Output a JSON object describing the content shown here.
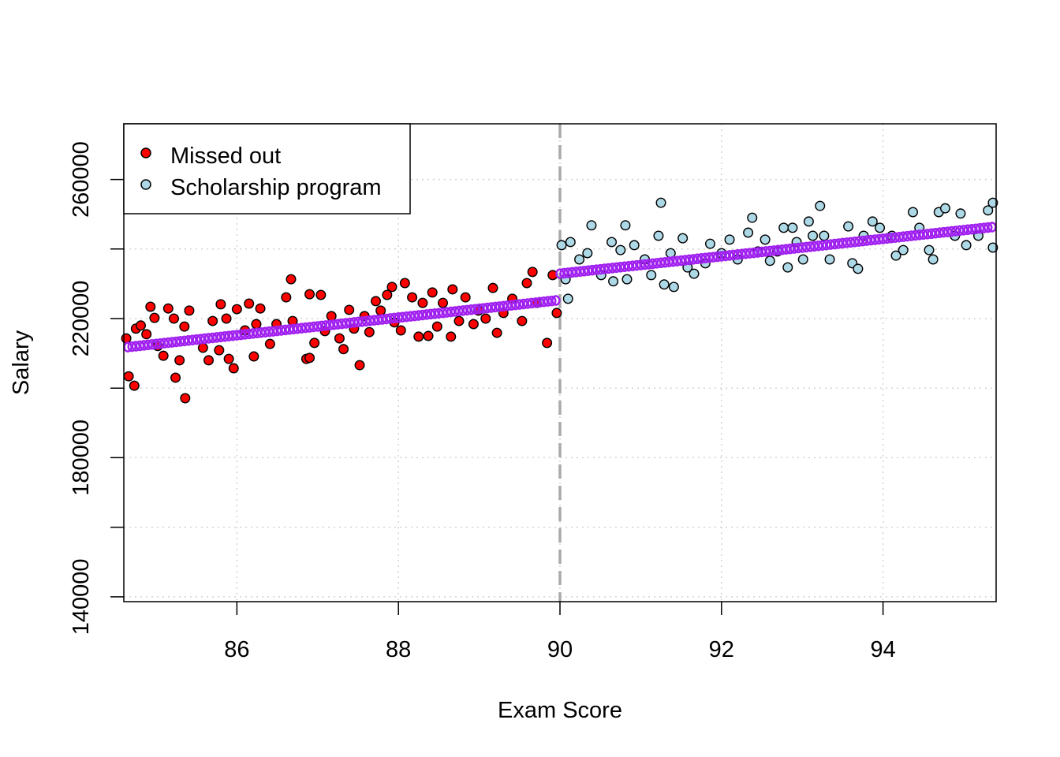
{
  "chart_data": {
    "type": "scatter",
    "title": "",
    "xlabel": "Exam Score",
    "ylabel": "Salary",
    "xlim": [
      84.6,
      95.4
    ],
    "ylim": [
      138600,
      276000
    ],
    "xticks": [
      86,
      88,
      90,
      92,
      94
    ],
    "xtick_labels": [
      "86",
      "88",
      "90",
      "92",
      "94"
    ],
    "yticks": [
      140000,
      160000,
      180000,
      200000,
      220000,
      240000,
      260000
    ],
    "ytick_labels": [
      "140000",
      "",
      "180000",
      "",
      "220000",
      "",
      "260000"
    ],
    "grid": true,
    "cutoff": 90,
    "legend": {
      "placement": "top-left",
      "entries": [
        {
          "label": "Missed out",
          "color": "#ff0000"
        },
        {
          "label": "Scholarship program",
          "color": "#add8e6"
        }
      ]
    },
    "colors": {
      "missed": "#ff0000",
      "scholarship": "#add8e6",
      "fit": "#a020f0",
      "cutoff": "#aaaaaa",
      "grid": "#d3d3d3"
    },
    "series": [
      {
        "name": "Missed out",
        "points": [
          [
            84.63,
            214300
          ],
          [
            84.66,
            203400
          ],
          [
            84.73,
            200700
          ],
          [
            84.75,
            217100
          ],
          [
            84.81,
            218000
          ],
          [
            84.88,
            215500
          ],
          [
            84.93,
            223400
          ],
          [
            84.98,
            220200
          ],
          [
            85.02,
            212100
          ],
          [
            85.09,
            209300
          ],
          [
            85.15,
            222900
          ],
          [
            85.22,
            220000
          ],
          [
            85.24,
            203000
          ],
          [
            85.29,
            208000
          ],
          [
            85.35,
            217700
          ],
          [
            85.36,
            197100
          ],
          [
            85.41,
            222300
          ],
          [
            85.58,
            211600
          ],
          [
            85.65,
            208000
          ],
          [
            85.7,
            219300
          ],
          [
            85.78,
            210900
          ],
          [
            85.8,
            224100
          ],
          [
            85.87,
            220000
          ],
          [
            85.9,
            208400
          ],
          [
            85.96,
            205700
          ],
          [
            86.0,
            222700
          ],
          [
            86.1,
            216600
          ],
          [
            86.15,
            224300
          ],
          [
            86.21,
            209100
          ],
          [
            86.24,
            218400
          ],
          [
            86.29,
            222900
          ],
          [
            86.41,
            212700
          ],
          [
            86.49,
            218400
          ],
          [
            86.61,
            226100
          ],
          [
            86.67,
            231300
          ],
          [
            86.69,
            219300
          ],
          [
            86.86,
            208400
          ],
          [
            86.9,
            227000
          ],
          [
            86.9,
            208700
          ],
          [
            86.96,
            213000
          ],
          [
            87.04,
            226800
          ],
          [
            87.09,
            216400
          ],
          [
            87.17,
            220700
          ],
          [
            87.27,
            214300
          ],
          [
            87.32,
            211200
          ],
          [
            87.39,
            222500
          ],
          [
            87.45,
            217100
          ],
          [
            87.52,
            206600
          ],
          [
            87.58,
            220700
          ],
          [
            87.64,
            216100
          ],
          [
            87.72,
            225000
          ],
          [
            87.78,
            222300
          ],
          [
            87.86,
            226800
          ],
          [
            87.92,
            229100
          ],
          [
            87.95,
            218900
          ],
          [
            88.03,
            216600
          ],
          [
            88.08,
            230200
          ],
          [
            88.17,
            226100
          ],
          [
            88.25,
            214800
          ],
          [
            88.3,
            224500
          ],
          [
            88.37,
            215000
          ],
          [
            88.42,
            227500
          ],
          [
            88.48,
            217700
          ],
          [
            88.55,
            224500
          ],
          [
            88.65,
            214800
          ],
          [
            88.67,
            228400
          ],
          [
            88.75,
            219300
          ],
          [
            88.83,
            226100
          ],
          [
            88.93,
            218400
          ],
          [
            88.99,
            222300
          ],
          [
            89.08,
            220000
          ],
          [
            89.17,
            228800
          ],
          [
            89.22,
            215900
          ],
          [
            89.3,
            221600
          ],
          [
            89.41,
            225700
          ],
          [
            89.53,
            219300
          ],
          [
            89.59,
            230200
          ],
          [
            89.66,
            233400
          ],
          [
            89.71,
            224500
          ],
          [
            89.84,
            213000
          ],
          [
            89.91,
            232500
          ],
          [
            89.96,
            221600
          ]
        ]
      },
      {
        "name": "Scholarship program",
        "points": [
          [
            90.02,
            241100
          ],
          [
            90.07,
            231300
          ],
          [
            90.1,
            225700
          ],
          [
            90.13,
            242000
          ],
          [
            90.24,
            237000
          ],
          [
            90.34,
            238800
          ],
          [
            90.39,
            246800
          ],
          [
            90.51,
            232500
          ],
          [
            90.64,
            242000
          ],
          [
            90.66,
            230700
          ],
          [
            90.75,
            239700
          ],
          [
            90.81,
            246800
          ],
          [
            90.83,
            231300
          ],
          [
            90.92,
            241100
          ],
          [
            91.05,
            237000
          ],
          [
            91.13,
            232500
          ],
          [
            91.22,
            243800
          ],
          [
            91.25,
            253300
          ],
          [
            91.29,
            229800
          ],
          [
            91.37,
            238800
          ],
          [
            91.41,
            229100
          ],
          [
            91.52,
            243100
          ],
          [
            91.58,
            234700
          ],
          [
            91.66,
            232900
          ],
          [
            91.8,
            235900
          ],
          [
            91.86,
            241500
          ],
          [
            92.0,
            238800
          ],
          [
            92.1,
            242700
          ],
          [
            92.2,
            237000
          ],
          [
            92.33,
            244700
          ],
          [
            92.38,
            249000
          ],
          [
            92.45,
            239300
          ],
          [
            92.54,
            242700
          ],
          [
            92.6,
            236600
          ],
          [
            92.69,
            239300
          ],
          [
            92.77,
            246100
          ],
          [
            92.82,
            234700
          ],
          [
            92.88,
            246100
          ],
          [
            92.93,
            242000
          ],
          [
            93.01,
            237000
          ],
          [
            93.08,
            247900
          ],
          [
            93.13,
            243800
          ],
          [
            93.22,
            252400
          ],
          [
            93.27,
            243800
          ],
          [
            93.34,
            237000
          ],
          [
            93.57,
            246500
          ],
          [
            93.62,
            235900
          ],
          [
            93.69,
            234300
          ],
          [
            93.76,
            243800
          ],
          [
            93.87,
            247900
          ],
          [
            93.96,
            246100
          ],
          [
            94.11,
            243800
          ],
          [
            94.16,
            238100
          ],
          [
            94.25,
            239700
          ],
          [
            94.37,
            250600
          ],
          [
            94.45,
            246100
          ],
          [
            94.57,
            239700
          ],
          [
            94.62,
            237000
          ],
          [
            94.69,
            250600
          ],
          [
            94.77,
            251700
          ],
          [
            94.89,
            243800
          ],
          [
            94.96,
            250200
          ],
          [
            95.03,
            241100
          ],
          [
            95.18,
            243800
          ],
          [
            95.3,
            251100
          ],
          [
            95.36,
            253300
          ],
          [
            95.36,
            240400
          ]
        ]
      }
    ],
    "fitted": [
      {
        "name": "Fit below cutoff",
        "x": [
          84.65,
          89.95
        ],
        "y": [
          211800,
          225200
        ],
        "step": 0.05
      },
      {
        "name": "Fit above cutoff",
        "x": [
          90.0,
          95.35
        ],
        "y": [
          232900,
          246300
        ],
        "step": 0.05
      }
    ]
  }
}
